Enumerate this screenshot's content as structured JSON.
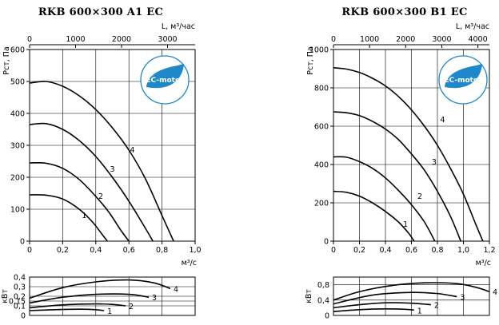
{
  "chart_data": [
    {
      "type": "line",
      "title": "RKB 600×300 A1 EC",
      "logo_text": "EC-motor",
      "logo_color": "#1e88c8",
      "top_axis": {
        "label": "L, м³/час",
        "ticks": [
          0,
          1000,
          2000,
          3000
        ],
        "range": [
          0,
          3600
        ]
      },
      "xlabel": "м³/с",
      "xlim": [
        0,
        1.0
      ],
      "xticks": [
        0,
        0.2,
        0.4,
        0.6,
        0.8,
        1.0
      ],
      "xtick_labels": [
        "0",
        "0,2",
        "0,4",
        "0,6",
        "0,8",
        "1,0"
      ],
      "ylabel": "Рст, Па",
      "ylim": [
        0,
        600
      ],
      "yticks": [
        0,
        100,
        200,
        300,
        400,
        500,
        600
      ],
      "ytick_labels": [
        "0",
        "100",
        "200",
        "300",
        "400",
        "500",
        "600"
      ],
      "series": [
        {
          "name": "1",
          "x": [
            0,
            0.1,
            0.2,
            0.3,
            0.38,
            0.44,
            0.47
          ],
          "y": [
            145,
            144,
            132,
            100,
            60,
            20,
            0
          ]
        },
        {
          "name": "2",
          "x": [
            0,
            0.1,
            0.2,
            0.3,
            0.4,
            0.48,
            0.55,
            0.6
          ],
          "y": [
            245,
            244,
            228,
            193,
            140,
            90,
            35,
            0
          ]
        },
        {
          "name": "3",
          "x": [
            0,
            0.1,
            0.2,
            0.3,
            0.4,
            0.5,
            0.6,
            0.7,
            0.745
          ],
          "y": [
            365,
            368,
            350,
            315,
            265,
            200,
            125,
            40,
            0
          ]
        },
        {
          "name": "4",
          "x": [
            0,
            0.1,
            0.2,
            0.3,
            0.4,
            0.5,
            0.6,
            0.7,
            0.8,
            0.87
          ],
          "y": [
            495,
            500,
            485,
            455,
            412,
            355,
            285,
            195,
            80,
            0
          ]
        }
      ],
      "curve_labels": [
        {
          "name": "1",
          "x": 0.33,
          "y": 72
        },
        {
          "name": "2",
          "x": 0.43,
          "y": 132
        },
        {
          "name": "3",
          "x": 0.5,
          "y": 218
        },
        {
          "name": "4",
          "x": 0.62,
          "y": 277
        }
      ],
      "power_chart": {
        "ylabel": "кВт",
        "ylim": [
          0,
          0.4
        ],
        "yticks": [
          0,
          0.1,
          0.15,
          0.2,
          0.3,
          0.4
        ],
        "ytick_labels": [
          "0",
          "0,1",
          "0,15",
          "0,2",
          "0,3",
          "0,4"
        ],
        "series": [
          {
            "name": "1",
            "x": [
              0,
              0.15,
              0.3,
              0.4,
              0.45
            ],
            "y": [
              0.05,
              0.06,
              0.065,
              0.06,
              0.05
            ]
          },
          {
            "name": "2",
            "x": [
              0,
              0.2,
              0.4,
              0.5,
              0.58
            ],
            "y": [
              0.08,
              0.11,
              0.12,
              0.115,
              0.1
            ]
          },
          {
            "name": "3",
            "x": [
              0,
              0.2,
              0.4,
              0.6,
              0.72
            ],
            "y": [
              0.13,
              0.19,
              0.22,
              0.22,
              0.19
            ]
          },
          {
            "name": "4",
            "x": [
              0,
              0.2,
              0.4,
              0.6,
              0.75,
              0.85
            ],
            "y": [
              0.18,
              0.29,
              0.35,
              0.37,
              0.34,
              0.28
            ]
          }
        ]
      }
    },
    {
      "type": "line",
      "title": "RKB 600×300 B1 EC",
      "logo_text": "EC-motor",
      "logo_color": "#1e88c8",
      "top_axis": {
        "label": "L, м³/час",
        "ticks": [
          0,
          1000,
          2000,
          3000,
          4000
        ],
        "range": [
          0,
          4320
        ]
      },
      "xlabel": "м³/с",
      "xlim": [
        0,
        1.2
      ],
      "xticks": [
        0,
        0.2,
        0.4,
        0.6,
        0.8,
        1.0,
        1.2
      ],
      "xtick_labels": [
        "0",
        "0,2",
        "0,4",
        "0,6",
        "0,8",
        "1,0",
        "1,2"
      ],
      "ylabel": "Рст, Па",
      "ylim": [
        0,
        1000
      ],
      "yticks": [
        0,
        200,
        400,
        600,
        800,
        1000
      ],
      "ytick_labels": [
        "0",
        "200",
        "400",
        "600",
        "800",
        "1000"
      ],
      "series": [
        {
          "name": "1",
          "x": [
            0,
            0.1,
            0.2,
            0.3,
            0.4,
            0.5,
            0.58,
            0.62
          ],
          "y": [
            260,
            255,
            235,
            200,
            155,
            100,
            40,
            0
          ]
        },
        {
          "name": "2",
          "x": [
            0,
            0.1,
            0.2,
            0.3,
            0.4,
            0.5,
            0.6,
            0.7,
            0.78
          ],
          "y": [
            440,
            438,
            415,
            380,
            330,
            265,
            190,
            100,
            0
          ]
        },
        {
          "name": "3",
          "x": [
            0,
            0.1,
            0.2,
            0.3,
            0.4,
            0.5,
            0.6,
            0.7,
            0.8,
            0.9,
            0.98
          ],
          "y": [
            675,
            670,
            655,
            625,
            585,
            530,
            455,
            370,
            260,
            130,
            0
          ]
        },
        {
          "name": "4",
          "x": [
            0,
            0.1,
            0.2,
            0.3,
            0.4,
            0.5,
            0.6,
            0.7,
            0.8,
            0.9,
            1.0,
            1.1,
            1.15
          ],
          "y": [
            905,
            898,
            880,
            850,
            810,
            755,
            685,
            600,
            500,
            380,
            245,
            80,
            0
          ]
        }
      ],
      "curve_labels": [
        {
          "name": "1",
          "x": 0.555,
          "y": 75
        },
        {
          "name": "2",
          "x": 0.665,
          "y": 220
        },
        {
          "name": "3",
          "x": 0.775,
          "y": 400
        },
        {
          "name": "4",
          "x": 0.84,
          "y": 620
        }
      ],
      "power_chart": {
        "ylabel": "кВт",
        "ylim": [
          0,
          1.0
        ],
        "yticks": [
          0,
          0.4,
          0.8
        ],
        "ytick_labels": [
          "0",
          "0,4",
          "0,8"
        ],
        "series": [
          {
            "name": "1",
            "x": [
              0,
              0.2,
              0.4,
              0.55,
              0.62
            ],
            "y": [
              0.1,
              0.15,
              0.17,
              0.16,
              0.14
            ]
          },
          {
            "name": "2",
            "x": [
              0,
              0.2,
              0.4,
              0.6,
              0.75
            ],
            "y": [
              0.2,
              0.28,
              0.33,
              0.32,
              0.28
            ]
          },
          {
            "name": "3",
            "x": [
              0,
              0.3,
              0.6,
              0.8,
              0.95
            ],
            "y": [
              0.3,
              0.53,
              0.6,
              0.57,
              0.49
            ]
          },
          {
            "name": "4",
            "x": [
              0,
              0.2,
              0.45,
              0.7,
              0.95,
              1.1,
              1.2
            ],
            "y": [
              0.4,
              0.62,
              0.78,
              0.85,
              0.83,
              0.73,
              0.62
            ]
          }
        ]
      }
    }
  ]
}
